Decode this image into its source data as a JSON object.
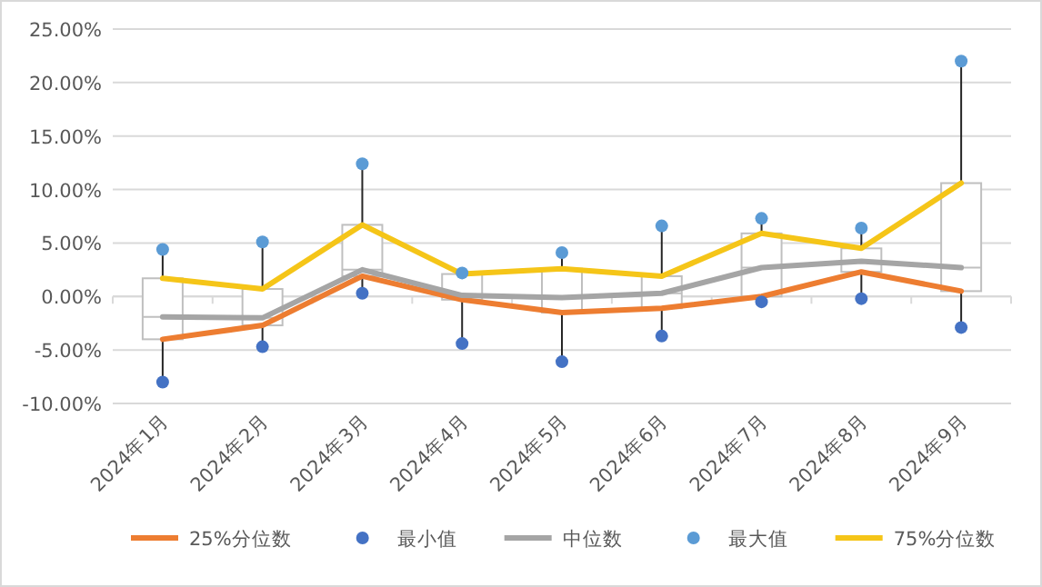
{
  "chart_data": {
    "type": "box",
    "categories": [
      "2024年1月",
      "2024年2月",
      "2024年3月",
      "2024年4月",
      "2024年5月",
      "2024年6月",
      "2024年7月",
      "2024年8月",
      "2024年9月"
    ],
    "boxes": [
      {
        "low": -8.0,
        "q1": -4.0,
        "median": -1.9,
        "q3": 1.7,
        "high": 4.4
      },
      {
        "low": -4.7,
        "q1": -2.7,
        "median": -2.0,
        "q3": 0.7,
        "high": 5.1
      },
      {
        "low": 0.3,
        "q1": 1.9,
        "median": 2.5,
        "q3": 6.7,
        "high": 12.4
      },
      {
        "low": -4.4,
        "q1": -0.3,
        "median": 0.1,
        "q3": 2.1,
        "high": 2.2
      },
      {
        "low": -6.1,
        "q1": -1.5,
        "median": -0.1,
        "q3": 2.6,
        "high": 4.1
      },
      {
        "low": -3.7,
        "q1": -1.1,
        "median": 0.3,
        "q3": 1.9,
        "high": 6.6
      },
      {
        "low": -0.5,
        "q1": 0.0,
        "median": 2.7,
        "q3": 5.9,
        "high": 7.3
      },
      {
        "low": -0.2,
        "q1": 2.3,
        "median": 3.3,
        "q3": 4.5,
        "high": 6.4
      },
      {
        "low": -2.9,
        "q1": 0.5,
        "median": 2.7,
        "q3": 10.6,
        "high": 22.0
      }
    ],
    "series": [
      {
        "name": "25%分位数",
        "type": "line",
        "color": "#ed7d31",
        "values": [
          -4.0,
          -2.7,
          1.9,
          -0.3,
          -1.5,
          -1.1,
          0.0,
          2.3,
          0.5
        ]
      },
      {
        "name": "最小值",
        "type": "scatter",
        "marker": "circle",
        "color": "#4472c4",
        "values": [
          -8.0,
          -4.7,
          0.3,
          -4.4,
          -6.1,
          -3.7,
          -0.5,
          -0.2,
          -2.9
        ]
      },
      {
        "name": "中位数",
        "type": "line",
        "color": "#a5a5a5",
        "values": [
          -1.9,
          -2.0,
          2.5,
          0.1,
          -0.1,
          0.3,
          2.7,
          3.3,
          2.7
        ]
      },
      {
        "name": "最大值",
        "type": "scatter",
        "marker": "circle",
        "color": "#5b9bd5",
        "values": [
          4.4,
          5.1,
          12.4,
          2.2,
          4.1,
          6.6,
          7.3,
          6.4,
          22.0
        ]
      },
      {
        "name": "75%分位数",
        "type": "line",
        "color": "#f5c518",
        "values": [
          1.7,
          0.7,
          6.7,
          2.1,
          2.6,
          1.9,
          5.9,
          4.5,
          10.6
        ]
      }
    ],
    "ylim": [
      -10,
      25
    ],
    "yticks": [
      {
        "value": -10,
        "label": "-10.00%"
      },
      {
        "value": -5,
        "label": "-5.00%"
      },
      {
        "value": 0,
        "label": "0.00%"
      },
      {
        "value": 5,
        "label": "5.00%"
      },
      {
        "value": 10,
        "label": "10.00%"
      },
      {
        "value": 15,
        "label": "15.00%"
      },
      {
        "value": 20,
        "label": "20.00%"
      },
      {
        "value": 25,
        "label": "25.00%"
      }
    ],
    "grid": "y",
    "legend": "bottom"
  }
}
